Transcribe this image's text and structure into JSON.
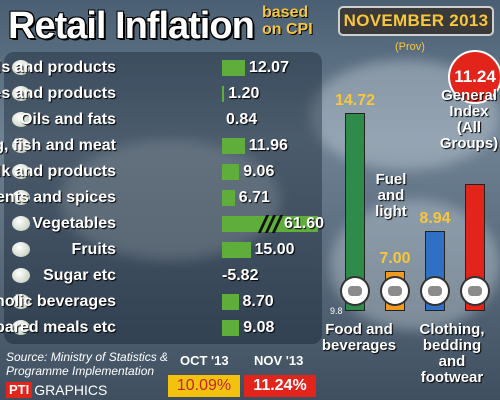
{
  "chart_data": [
    {
      "type": "bar",
      "title": "Retail Inflation",
      "title_note_line1": "based",
      "title_note_line2": "on CPI",
      "date_label": "NOVEMBER 2013",
      "prov_note": "(Prov)",
      "categories": [
        "Cereals and products",
        "Pulses and products",
        "Oils and fats",
        "Egg, fish and meat",
        "Milk and products",
        "Condiments and spices",
        "Vegetables",
        "Fruits",
        "Sugar etc",
        "Non-alcoholic beverages",
        "Prepared meals etc"
      ],
      "values": [
        12.07,
        1.2,
        0.84,
        11.96,
        9.06,
        6.71,
        61.6,
        15.0,
        -5.82,
        8.7,
        9.08
      ],
      "value_labels": [
        "12.07",
        "1.20",
        "0.84",
        "11.96",
        "9.06",
        "6.71",
        "61.60",
        "15.00",
        "-5.82",
        "8.70",
        "9.08"
      ],
      "broken_axis_category": "Vegetables",
      "bar_color": "#5fae3c"
    },
    {
      "type": "bar",
      "categories": [
        "Food and beverages",
        "Fuel and light",
        "Clothing, bedding and footwear",
        "General Index (All Groups)"
      ],
      "values": [
        14.72,
        7.0,
        8.94,
        11.24
      ],
      "value_labels": [
        "14.72",
        "7.00",
        "8.94",
        "11.24"
      ],
      "axis_min_label": "9.8",
      "colors": [
        "#2e8b4a",
        "#f29a1f",
        "#2f6fc4",
        "#e2241b"
      ]
    }
  ],
  "source": {
    "line1": "Source: Ministry of Statistics &",
    "line2": "Programme Implementation"
  },
  "logo": {
    "pti": "PTI",
    "graphics": "GRAPHICS"
  },
  "comparison": {
    "oct_label": "OCT '13",
    "nov_label": "NOV '13",
    "oct_value": "10.09%",
    "nov_value": "11.24%"
  }
}
